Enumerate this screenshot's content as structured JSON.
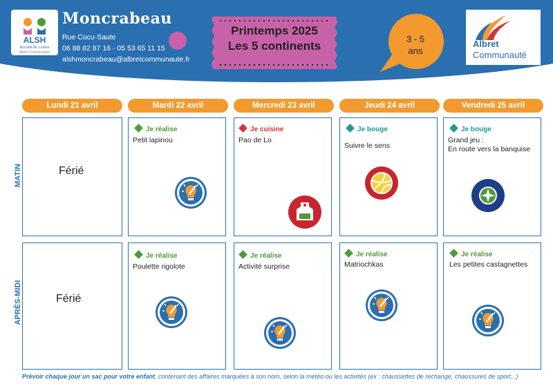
{
  "header": {
    "site_name": "Moncrabeau",
    "address": "Rue Cocu-Saute",
    "phones": "06 88 82 87 16 - 05 53 65 11 15",
    "email": "alshmoncrabeau@albretcommunaute.fr",
    "title_line1": "Printemps 2025",
    "title_line2": "Les 5 continents",
    "age_line1": "3 - 5",
    "age_line2": "ans",
    "logo_left_text": "Accueil de Loisirs",
    "logo_left_sub": "Albret Communauté",
    "logo_right_line1": "Albret",
    "logo_right_line2": "Communauté"
  },
  "days": [
    "Lundi 21 avril",
    "Mardi 22 avril",
    "Mercredi 23 avril",
    "Jeudi 24 avril",
    "Vendredi 25 avril"
  ],
  "rows": {
    "morning": "MATIN",
    "afternoon": "APRÈS-MIDI"
  },
  "morning": {
    "mon": "Férié",
    "tue": {
      "category": "Je réalise",
      "activity": "Petit lapinou",
      "icon": "lightbulb-pencil-icon"
    },
    "wed": {
      "category": "Je cuisine",
      "activity": "Pao de Lo",
      "icon": "apron-icon"
    },
    "thu": {
      "category": "Je bouge",
      "activity": "Suivre le sens",
      "icon": "volleyball-icon"
    },
    "fri": {
      "category": "Je bouge",
      "activity_line1": "Grand jeu :",
      "activity_line2": "En route vers la banquise",
      "icon": "compass-icon"
    }
  },
  "afternoon": {
    "mon": "Férié",
    "tue": {
      "category": "Je réalise",
      "activity": "Poulette rigolote",
      "icon": "lightbulb-pencil-icon"
    },
    "wed": {
      "category": "Je réalise",
      "activity": "Activité surprise",
      "icon": "lightbulb-pencil-icon"
    },
    "thu": {
      "category": "Je réalise",
      "activity": "Matriochkas",
      "icon": "lightbulb-pencil-icon"
    },
    "fri": {
      "category": "Je réalise",
      "activity": "Les petites castagnettes",
      "icon": "lightbulb-pencil-icon"
    }
  },
  "footer": {
    "bold_part": "Prévoir chaque jour un sac pour votre enfant",
    "rest": ", contenant des affaires marquées à son nom, selon la météo ou les activités (ex : chaussettes de rechange, chaussures de sport...)"
  },
  "colors": {
    "primary_blue": "#2a6fb0",
    "orange": "#f29a2e",
    "pink": "#c862a8",
    "realise_green": "#4f9a3a",
    "cuisine_red": "#d2343a",
    "bouge_teal": "#1f9a93"
  }
}
